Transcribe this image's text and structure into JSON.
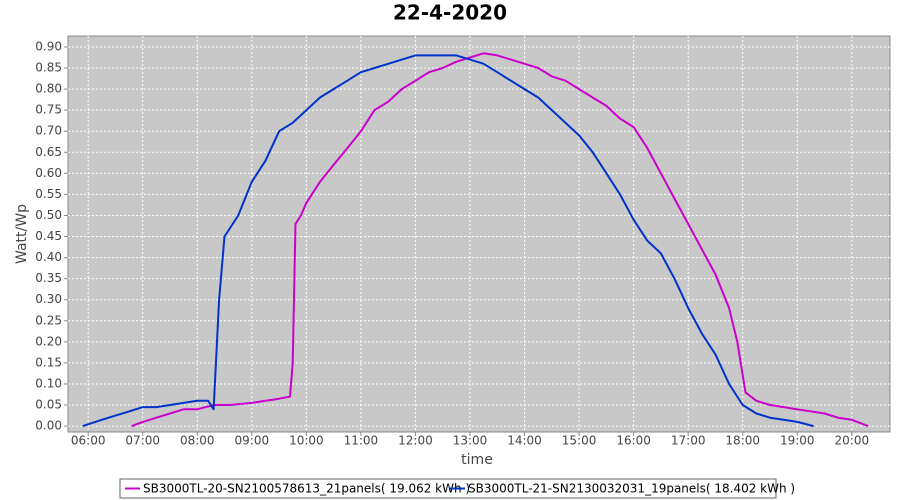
{
  "chart_data": {
    "type": "line",
    "title": "22-4-2020",
    "x_label": "time",
    "y_label": "Watt/Wp",
    "grid": true,
    "xlim": [
      5.63,
      20.7
    ],
    "ylim": [
      -0.014,
      0.926
    ],
    "xticks": [
      {
        "value": 6,
        "label": "06:00"
      },
      {
        "value": 7,
        "label": "07:00"
      },
      {
        "value": 8,
        "label": "08:00"
      },
      {
        "value": 9,
        "label": "09:00"
      },
      {
        "value": 10,
        "label": "10:00"
      },
      {
        "value": 11,
        "label": "11:00"
      },
      {
        "value": 12,
        "label": "12:00"
      },
      {
        "value": 13,
        "label": "13:00"
      },
      {
        "value": 14,
        "label": "14:00"
      },
      {
        "value": 15,
        "label": "15:00"
      },
      {
        "value": 16,
        "label": "16:00"
      },
      {
        "value": 17,
        "label": "17:00"
      },
      {
        "value": 18,
        "label": "18:00"
      },
      {
        "value": 19,
        "label": "19:00"
      },
      {
        "value": 20,
        "label": "20:00"
      }
    ],
    "yticks": [
      {
        "value": 0,
        "label": "0.00"
      },
      {
        "value": 0.05,
        "label": "0.05"
      },
      {
        "value": 0.1,
        "label": "0.10"
      },
      {
        "value": 0.15,
        "label": "0.15"
      },
      {
        "value": 0.2,
        "label": "0.20"
      },
      {
        "value": 0.25,
        "label": "0.25"
      },
      {
        "value": 0.3,
        "label": "0.30"
      },
      {
        "value": 0.35,
        "label": "0.35"
      },
      {
        "value": 0.4,
        "label": "0.40"
      },
      {
        "value": 0.45,
        "label": "0.45"
      },
      {
        "value": 0.5,
        "label": "0.50"
      },
      {
        "value": 0.55,
        "label": "0.55"
      },
      {
        "value": 0.6,
        "label": "0.60"
      },
      {
        "value": 0.65,
        "label": "0.65"
      },
      {
        "value": 0.7,
        "label": "0.70"
      },
      {
        "value": 0.75,
        "label": "0.75"
      },
      {
        "value": 0.8,
        "label": "0.80"
      },
      {
        "value": 0.85,
        "label": "0.85"
      },
      {
        "value": 0.9,
        "label": "0.90"
      }
    ],
    "series": [
      {
        "name": "SB3000TL-20-SN2100578613_21panels( 19.062 kWh )",
        "color": "#cc00cc",
        "x": [
          6.8,
          7.0,
          7.25,
          7.5,
          7.75,
          8.0,
          8.3,
          8.6,
          9.0,
          9.25,
          9.5,
          9.7,
          9.75,
          9.8,
          9.9,
          10.0,
          10.25,
          10.5,
          10.75,
          11.0,
          11.25,
          11.5,
          11.75,
          12.0,
          12.25,
          12.5,
          12.75,
          13.0,
          13.25,
          13.5,
          13.75,
          14.0,
          14.25,
          14.5,
          14.75,
          15.0,
          15.25,
          15.5,
          15.75,
          16.0,
          16.25,
          16.5,
          16.75,
          17.0,
          17.25,
          17.5,
          17.75,
          17.9,
          18.05,
          18.25,
          18.5,
          18.75,
          19.0,
          19.25,
          19.5,
          19.75,
          20.0,
          20.3
        ],
        "values": [
          0.0,
          0.01,
          0.02,
          0.03,
          0.04,
          0.04,
          0.05,
          0.05,
          0.055,
          0.06,
          0.065,
          0.07,
          0.15,
          0.48,
          0.5,
          0.53,
          0.58,
          0.62,
          0.66,
          0.7,
          0.75,
          0.77,
          0.8,
          0.82,
          0.84,
          0.85,
          0.865,
          0.875,
          0.885,
          0.88,
          0.87,
          0.86,
          0.85,
          0.83,
          0.82,
          0.8,
          0.78,
          0.76,
          0.73,
          0.71,
          0.66,
          0.6,
          0.54,
          0.48,
          0.42,
          0.36,
          0.28,
          0.2,
          0.08,
          0.06,
          0.05,
          0.045,
          0.04,
          0.035,
          0.03,
          0.02,
          0.015,
          0.0
        ]
      },
      {
        "name": "SB3000TL-21-SN2130032031_19panels( 18.402 kWh )",
        "color": "#0033cc",
        "x": [
          5.9,
          6.25,
          6.5,
          6.75,
          7.0,
          7.25,
          7.5,
          7.75,
          8.0,
          8.2,
          8.3,
          8.4,
          8.5,
          8.75,
          9.0,
          9.25,
          9.5,
          9.75,
          10.0,
          10.25,
          10.5,
          10.75,
          11.0,
          11.25,
          11.5,
          11.75,
          12.0,
          12.25,
          12.5,
          12.75,
          13.0,
          13.25,
          13.5,
          13.75,
          14.0,
          14.25,
          14.5,
          14.75,
          15.0,
          15.25,
          15.5,
          15.75,
          16.0,
          16.25,
          16.5,
          16.75,
          17.0,
          17.25,
          17.5,
          17.75,
          18.0,
          18.25,
          18.5,
          18.75,
          19.0,
          19.3
        ],
        "values": [
          0.0,
          0.015,
          0.025,
          0.035,
          0.045,
          0.045,
          0.05,
          0.055,
          0.06,
          0.06,
          0.04,
          0.3,
          0.45,
          0.5,
          0.58,
          0.63,
          0.7,
          0.72,
          0.75,
          0.78,
          0.8,
          0.82,
          0.84,
          0.85,
          0.86,
          0.87,
          0.88,
          0.88,
          0.88,
          0.88,
          0.87,
          0.86,
          0.84,
          0.82,
          0.8,
          0.78,
          0.75,
          0.72,
          0.69,
          0.65,
          0.6,
          0.55,
          0.49,
          0.44,
          0.41,
          0.35,
          0.28,
          0.22,
          0.17,
          0.1,
          0.05,
          0.03,
          0.02,
          0.015,
          0.01,
          0.0
        ]
      }
    ]
  }
}
